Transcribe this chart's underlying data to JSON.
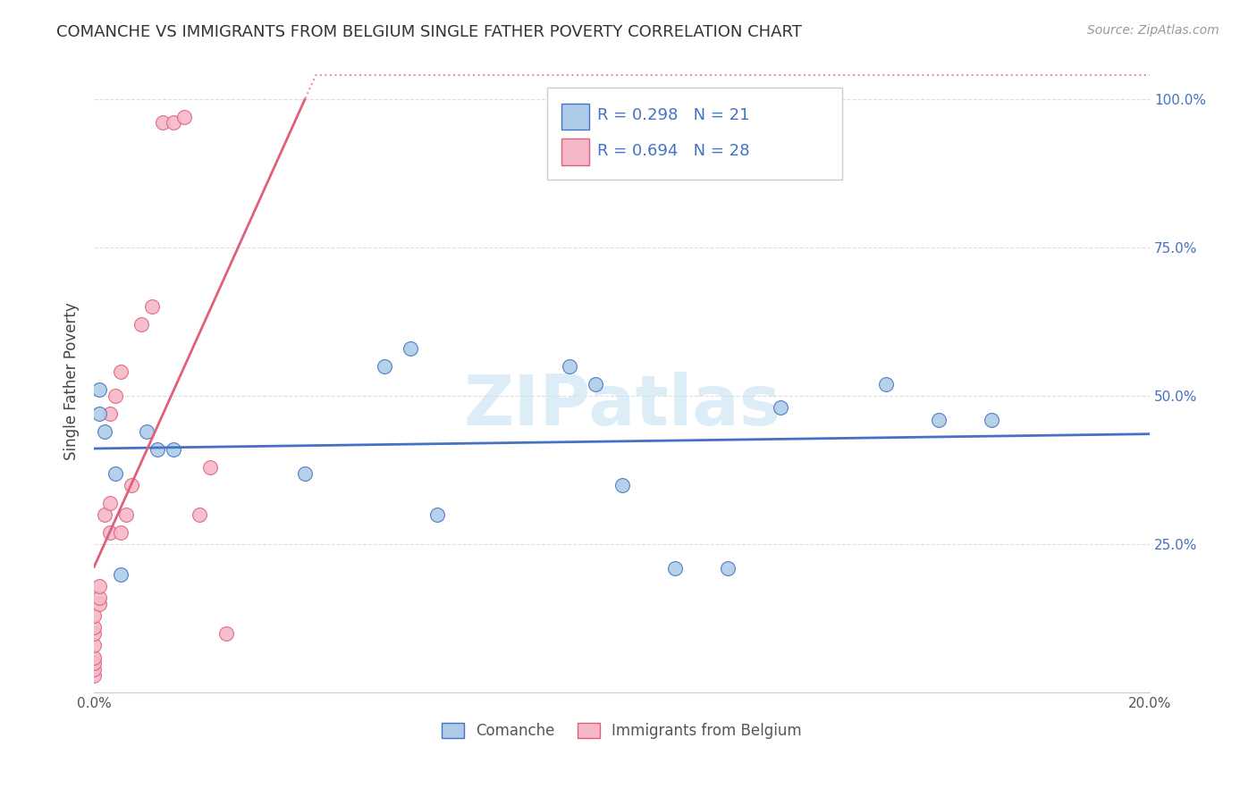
{
  "title": "COMANCHE VS IMMIGRANTS FROM BELGIUM SINGLE FATHER POVERTY CORRELATION CHART",
  "source": "Source: ZipAtlas.com",
  "ylabel": "Single Father Poverty",
  "yticks": [
    0.0,
    0.25,
    0.5,
    0.75,
    1.0
  ],
  "ytick_labels": [
    "",
    "25.0%",
    "50.0%",
    "75.0%",
    "100.0%"
  ],
  "xlim": [
    0.0,
    0.2
  ],
  "ylim": [
    0.0,
    1.05
  ],
  "comanche_R": 0.298,
  "comanche_N": 21,
  "belgium_R": 0.694,
  "belgium_N": 28,
  "comanche_color": "#aecce8",
  "comanche_line_color": "#4472c4",
  "belgium_color": "#f4b8c8",
  "belgium_line_color": "#e0607a",
  "watermark": "ZIPatlas",
  "comanche_x": [
    0.001,
    0.001,
    0.002,
    0.004,
    0.005,
    0.01,
    0.012,
    0.015,
    0.04,
    0.055,
    0.06,
    0.065,
    0.09,
    0.095,
    0.1,
    0.11,
    0.12,
    0.13,
    0.15,
    0.16,
    0.17
  ],
  "comanche_y": [
    0.47,
    0.51,
    0.44,
    0.37,
    0.2,
    0.44,
    0.41,
    0.41,
    0.37,
    0.55,
    0.58,
    0.3,
    0.55,
    0.52,
    0.35,
    0.21,
    0.21,
    0.48,
    0.52,
    0.46,
    0.46
  ],
  "belgium_x": [
    0.0,
    0.0,
    0.0,
    0.0,
    0.0,
    0.0,
    0.0,
    0.0,
    0.001,
    0.001,
    0.001,
    0.002,
    0.003,
    0.003,
    0.003,
    0.004,
    0.005,
    0.005,
    0.006,
    0.007,
    0.009,
    0.011,
    0.013,
    0.015,
    0.017,
    0.02,
    0.022,
    0.025
  ],
  "belgium_y": [
    0.03,
    0.04,
    0.05,
    0.06,
    0.08,
    0.1,
    0.11,
    0.13,
    0.15,
    0.16,
    0.18,
    0.3,
    0.27,
    0.32,
    0.47,
    0.5,
    0.27,
    0.54,
    0.3,
    0.35,
    0.62,
    0.65,
    0.96,
    0.96,
    0.97,
    0.3,
    0.38,
    0.1
  ],
  "legend_label_1": "Comanche",
  "legend_label_2": "Immigrants from Belgium",
  "background_color": "#ffffff",
  "grid_color": "#dddddd"
}
